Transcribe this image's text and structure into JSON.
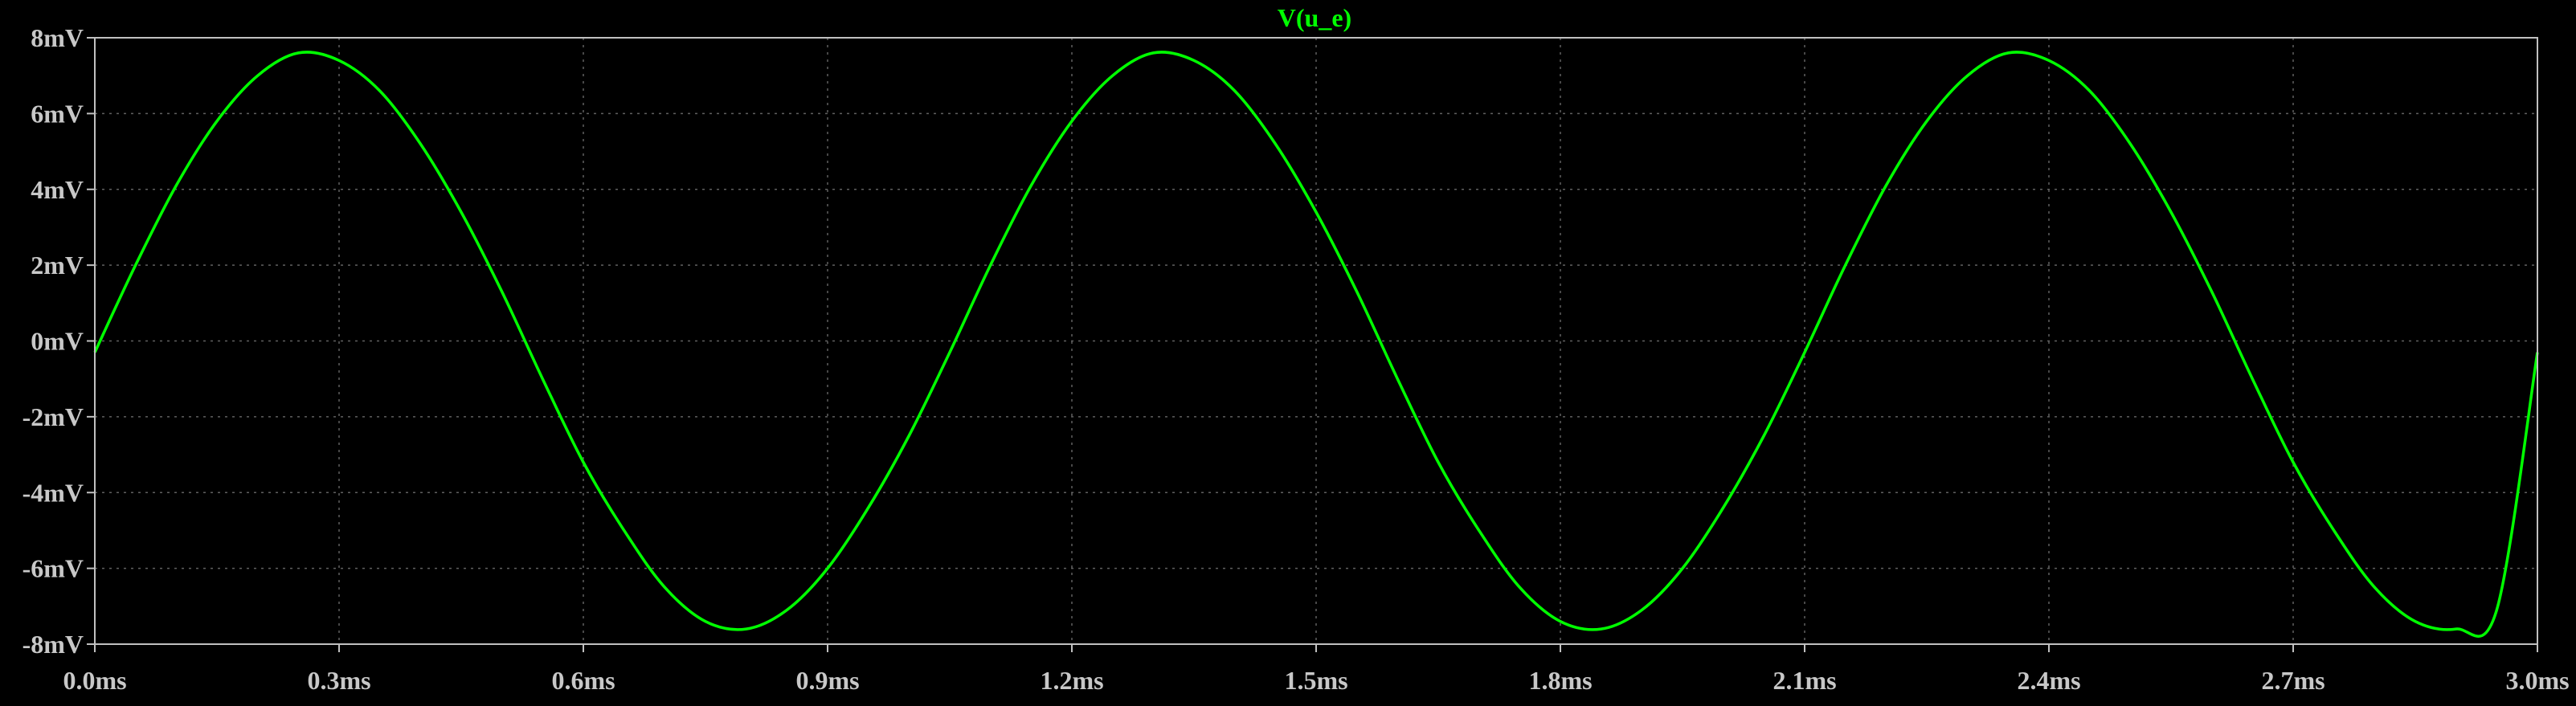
{
  "chart_data": {
    "type": "line",
    "title": "V(u_e)",
    "xlabel": "",
    "ylabel": "",
    "x_unit": "ms",
    "y_unit": "mV",
    "xlim": [
      0.0,
      3.0
    ],
    "ylim": [
      -8,
      8
    ],
    "x_ticks": [
      0.0,
      0.3,
      0.6,
      0.9,
      1.2,
      1.5,
      1.8,
      2.1,
      2.4,
      2.7,
      3.0
    ],
    "x_tick_labels": [
      "0.0ms",
      "0.3ms",
      "0.6ms",
      "0.9ms",
      "1.2ms",
      "1.5ms",
      "1.8ms",
      "2.1ms",
      "2.4ms",
      "2.7ms",
      "3.0ms"
    ],
    "y_ticks": [
      8,
      6,
      4,
      2,
      0,
      -2,
      -4,
      -6,
      -8
    ],
    "y_tick_labels": [
      "8mV",
      "6mV",
      "4mV",
      "2mV",
      "0mV",
      "-2mV",
      "-4mV",
      "-6mV",
      "-8mV"
    ],
    "grid": true,
    "background_color": "#000000",
    "axis_color": "#c0c0c0",
    "grid_color": "#606060",
    "tick_label_color": "#c8c8c8",
    "series": [
      {
        "name": "V(u_e)",
        "color": "#00ff00",
        "x": [
          0.0,
          0.05,
          0.1,
          0.15,
          0.2,
          0.25,
          0.3,
          0.35,
          0.4,
          0.45,
          0.5,
          0.55,
          0.6,
          0.65,
          0.7,
          0.75,
          0.8,
          0.85,
          0.9,
          0.95,
          1.0,
          1.05,
          1.1,
          1.15,
          1.2,
          1.25,
          1.3,
          1.35,
          1.4,
          1.45,
          1.5,
          1.55,
          1.6,
          1.65,
          1.7,
          1.75,
          1.8,
          1.85,
          1.9,
          1.95,
          2.0,
          2.05,
          2.1,
          2.15,
          2.2,
          2.25,
          2.3,
          2.35,
          2.4,
          2.45,
          2.5,
          2.55,
          2.6,
          2.65,
          2.7,
          2.75,
          2.8,
          2.85,
          2.9,
          2.95,
          3.0
        ],
        "y": [
          -0.3,
          2.0,
          4.1,
          5.8,
          7.0,
          7.6,
          7.4,
          6.6,
          5.2,
          3.4,
          1.3,
          -1.0,
          -3.2,
          -5.0,
          -6.5,
          -7.4,
          -7.6,
          -7.1,
          -6.0,
          -4.4,
          -2.5,
          -0.3,
          2.0,
          4.1,
          5.8,
          7.0,
          7.6,
          7.4,
          6.6,
          5.2,
          3.4,
          1.3,
          -1.0,
          -3.2,
          -5.0,
          -6.5,
          -7.4,
          -7.6,
          -7.1,
          -6.0,
          -4.4,
          -2.5,
          -0.3,
          2.0,
          4.1,
          5.8,
          7.0,
          7.6,
          7.4,
          6.6,
          5.2,
          3.4,
          1.3,
          -1.0,
          -3.2,
          -5.0,
          -6.5,
          -7.4,
          -7.6,
          -7.1,
          -0.3
        ]
      }
    ]
  }
}
